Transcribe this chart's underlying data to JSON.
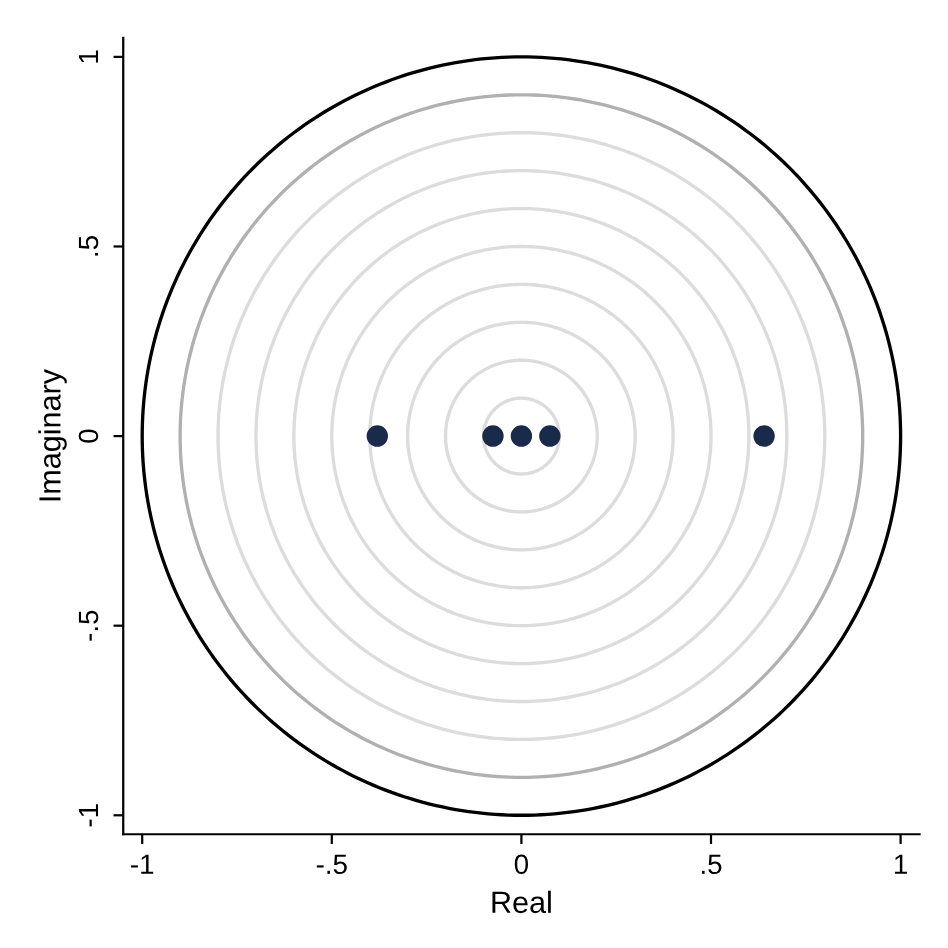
{
  "chart_data": {
    "type": "scatter",
    "xlabel": "Real",
    "ylabel": "Imaginary",
    "x": [
      -0.38,
      -0.075,
      0,
      0.075,
      0.64
    ],
    "values": [
      0,
      0,
      0,
      0,
      0
    ],
    "color": "#1a2a4a",
    "marker": "circle",
    "xlim": [
      -1.05,
      1.05
    ],
    "ylim": [
      -1.05,
      1.05
    ],
    "xticks": [
      {
        "value": -1,
        "label": "-1"
      },
      {
        "value": -0.5,
        "label": "-.5"
      },
      0,
      {
        "value": 0.5,
        "label": ".5"
      },
      1
    ],
    "yticks": [
      {
        "value": -1,
        "label": "-1"
      },
      {
        "value": -0.5,
        "label": "-.5"
      },
      0,
      {
        "value": 0.5,
        "label": ".5"
      },
      1
    ],
    "grid": false
  }
}
